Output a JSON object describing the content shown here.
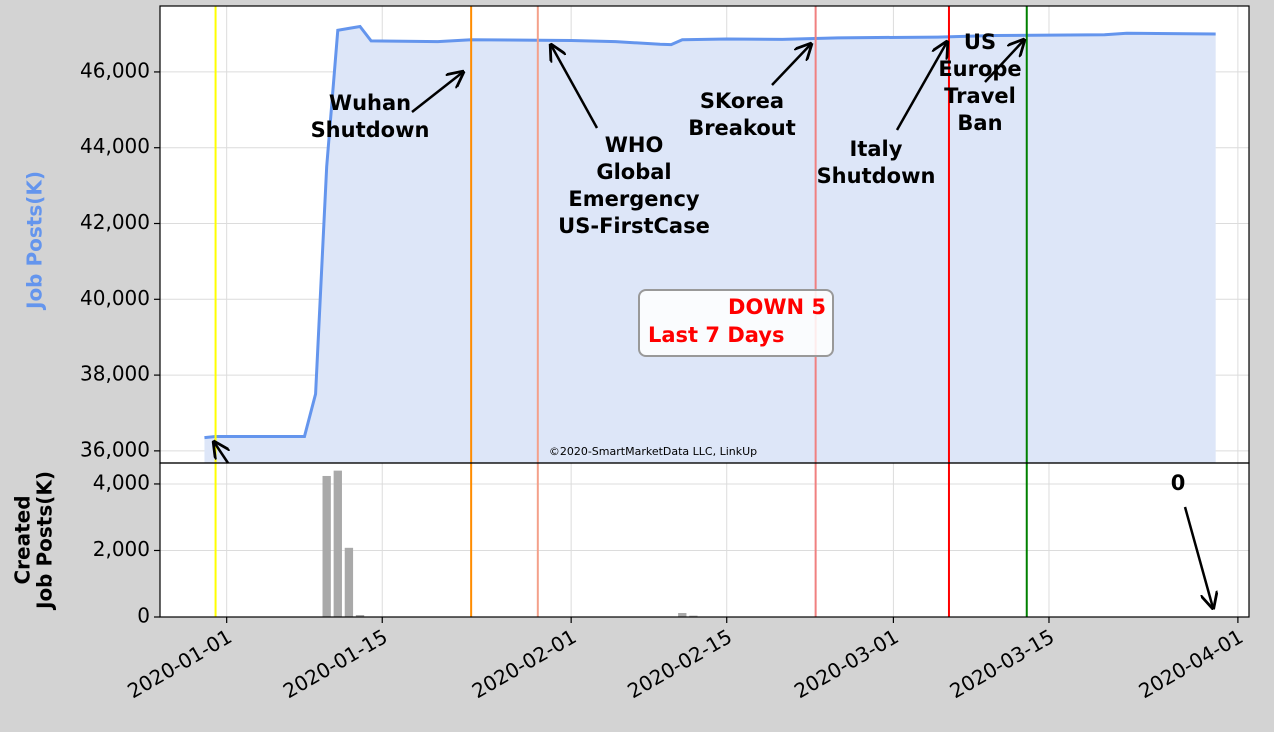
{
  "chart_data": [
    {
      "type": "line",
      "ylabel": "Job Posts(K)",
      "color": "#6495ed",
      "fill": "#dde6f8",
      "x": [
        "2019-12-30",
        "2019-12-31",
        "2020-01-08",
        "2020-01-09",
        "2020-01-10",
        "2020-01-11",
        "2020-01-12",
        "2020-01-13",
        "2020-01-14",
        "2020-01-20",
        "2020-01-23",
        "2020-02-01",
        "2020-02-05",
        "2020-02-09",
        "2020-02-10",
        "2020-02-11",
        "2020-02-15",
        "2020-02-20",
        "2020-02-25",
        "2020-03-05",
        "2020-03-10",
        "2020-03-20",
        "2020-03-22",
        "2020-03-26",
        "2020-03-30"
      ],
      "values": [
        36350,
        36380,
        36380,
        37500,
        43500,
        47100,
        47150,
        47200,
        46820,
        46800,
        46850,
        46830,
        46800,
        46730,
        46720,
        46850,
        46870,
        46860,
        46900,
        46920,
        46960,
        46980,
        47020,
        47010,
        47000
      ],
      "xlim": [
        "2019-12-26",
        "2020-04-02"
      ],
      "ylim": [
        35680,
        47740
      ],
      "yticks": [
        {
          "value": 36000,
          "label": "36,000"
        },
        {
          "value": 38000,
          "label": "38,000"
        },
        {
          "value": 40000,
          "label": "40,000"
        },
        {
          "value": 42000,
          "label": "42,000"
        },
        {
          "value": 44000,
          "label": "44,000"
        },
        {
          "value": 46000,
          "label": "46,000"
        }
      ],
      "grid": true,
      "vlines": [
        {
          "x": "2019-12-31",
          "color": "#ffff00"
        },
        {
          "x": "2020-01-23",
          "color": "#ff8c00"
        },
        {
          "x": "2020-01-29",
          "color": "#f4a08a"
        },
        {
          "x": "2020-02-23",
          "color": "#f08080"
        },
        {
          "x": "2020-03-06",
          "color": "#ff0000"
        },
        {
          "x": "2020-03-13",
          "color": "#008000"
        }
      ],
      "annotations": [
        {
          "text": [
            "Wuhan",
            "Shutdown"
          ]
        },
        {
          "text": [
            "WHO",
            "Global",
            "Emergency",
            "US-FirstCase"
          ]
        },
        {
          "text": [
            "SKorea",
            "Breakout"
          ]
        },
        {
          "text": [
            "Italy",
            "Shutdown"
          ]
        },
        {
          "text": [
            "US",
            "Europe",
            "Travel",
            "Ban"
          ]
        }
      ],
      "callout": [
        "DOWN 5",
        "Last 7 Days"
      ],
      "credit": "©2020-SmartMarketData LLC, LinkUp"
    },
    {
      "type": "bar",
      "ylabel": [
        "Created",
        "Job Posts(K)"
      ],
      "color": "#a9a9a9",
      "x": [
        "2020-01-10",
        "2020-01-11",
        "2020-01-12",
        "2020-01-13",
        "2020-02-11",
        "2020-02-12"
      ],
      "values": [
        4240,
        4400,
        2080,
        60,
        120,
        40
      ],
      "xlim": [
        "2019-12-26",
        "2020-04-02"
      ],
      "ylim": [
        0,
        4630
      ],
      "yticks": [
        0,
        {
          "value": 2000,
          "label": "2,000"
        },
        {
          "value": 4000,
          "label": "4,000"
        }
      ],
      "xticks": [
        "2020-01-01",
        "2020-01-15",
        "2020-02-01",
        "2020-02-15",
        "2020-03-01",
        "2020-03-15",
        "2020-04-01"
      ],
      "grid": true,
      "annotations": [
        {
          "text": [
            "0"
          ]
        }
      ]
    }
  ]
}
